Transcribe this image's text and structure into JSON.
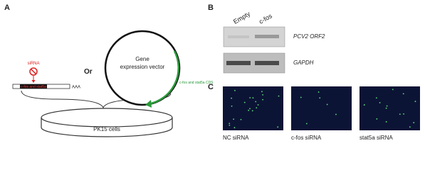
{
  "panel_a": {
    "label": "A",
    "sirna": "siRNA",
    "target": "c-fos and stat5a",
    "polya": "AAA",
    "or": "Or",
    "vector_lines": [
      "Gene",
      "expression vector"
    ],
    "cds": "c-fos and stat5a CDS",
    "cells": "PK15 cells"
  },
  "panel_b": {
    "label": "B",
    "lanes": [
      "Empty",
      "c-fos"
    ],
    "bands": [
      "PCV2 ORF2",
      "GAPDH"
    ]
  },
  "panel_c": {
    "label": "C",
    "images": [
      "NC siRNA",
      "c-fos siRNA",
      "stat5a siRNA"
    ]
  }
}
